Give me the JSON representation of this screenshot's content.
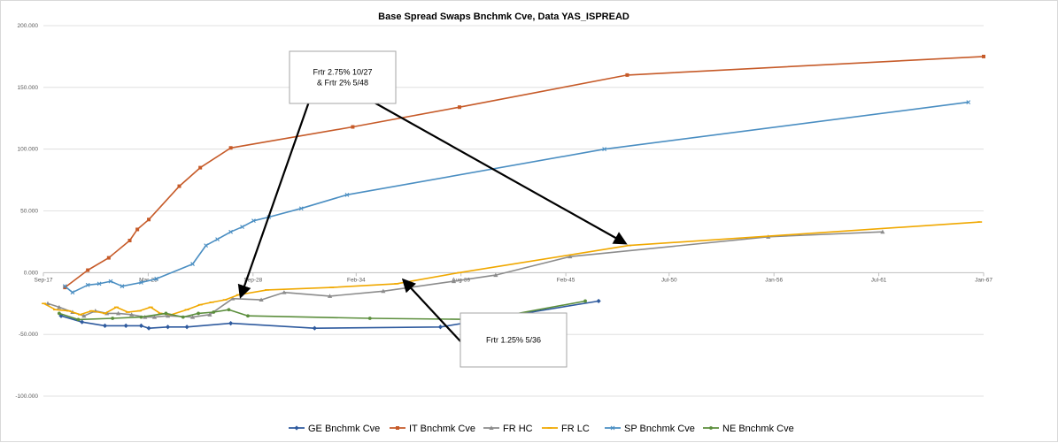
{
  "chart_data": {
    "type": "line",
    "title": "Base Spread Swaps Bnchmk Cve, Data YAS_ISPREAD",
    "xlabel": "",
    "ylabel": "",
    "ylim": [
      -100,
      200
    ],
    "yticks": [
      -100,
      -50,
      0,
      50,
      100,
      150,
      200
    ],
    "ytick_labels": [
      "-100.000",
      "-50.000",
      "0.000",
      "50.000",
      "100.000",
      "150.000",
      "200.000"
    ],
    "xticks": [
      2017.67,
      2023.17,
      2028.67,
      2034.08,
      2039.58,
      2045.08,
      2050.5,
      2056.0,
      2061.5,
      2067.0
    ],
    "xtick_labels": [
      "Sep-17",
      "Mar-23",
      "Sep-28",
      "Feb-34",
      "Aug-39",
      "Feb-45",
      "Jul-50",
      "Jan-56",
      "Jul-61",
      "Jan-67"
    ],
    "xlim": [
      2017.67,
      2067.0
    ],
    "grid": "horizontal",
    "legend_position": "bottom",
    "series": [
      {
        "name": "GE Bnchmk Cve",
        "color": "#2e5a9e",
        "marker": "diamond",
        "x": [
          2018.6,
          2019.7,
          2020.9,
          2022.0,
          2022.8,
          2023.2,
          2024.2,
          2025.2,
          2027.5,
          2031.9,
          2038.5,
          2046.8
        ],
        "y": [
          -35,
          -40,
          -43,
          -43,
          -43,
          -45,
          -44,
          -44,
          -41,
          -45,
          -44,
          -23
        ]
      },
      {
        "name": "IT Bnchmk Cve",
        "color": "#c65a28",
        "marker": "square",
        "x": [
          2018.8,
          2020.0,
          2021.1,
          2022.2,
          2022.6,
          2023.2,
          2024.8,
          2025.9,
          2027.5,
          2033.9,
          2039.5,
          2048.3,
          2067.0
        ],
        "y": [
          -12,
          2,
          12,
          26,
          35,
          43,
          70,
          85,
          101,
          118,
          134,
          160,
          175
        ]
      },
      {
        "name": "FR HC",
        "color": "#8c8c8c",
        "marker": "triangle",
        "x": [
          2017.9,
          2018.5,
          2019.2,
          2019.8,
          2020.4,
          2021.0,
          2021.6,
          2022.3,
          2023.0,
          2023.5,
          2024.2,
          2025.5,
          2026.4,
          2027.6,
          2029.1,
          2030.3,
          2032.7,
          2035.5,
          2039.2,
          2041.4,
          2045.3,
          2055.7,
          2061.7
        ],
        "y": [
          -25,
          -28,
          -32,
          -35,
          -31,
          -33,
          -33,
          -34,
          -36,
          -36,
          -35,
          -36,
          -34,
          -21,
          -22,
          -16,
          -19,
          -15,
          -7,
          -2,
          13,
          29,
          33
        ]
      },
      {
        "name": "FR LC",
        "color": "#f0a800",
        "marker": "dash",
        "x": [
          2017.7,
          2018.3,
          2019.0,
          2019.6,
          2020.2,
          2020.9,
          2021.5,
          2022.1,
          2022.7,
          2023.3,
          2023.8,
          2024.4,
          2025.2,
          2025.9,
          2026.5,
          2027.2,
          2027.9,
          2029.4,
          2032.8,
          2036.2,
          2039.5,
          2048.4,
          2066.8
        ],
        "y": [
          -25,
          -30,
          -31,
          -34,
          -31,
          -33,
          -28,
          -32,
          -31,
          -28,
          -33,
          -34,
          -30,
          -26,
          -24,
          -22,
          -18,
          -14,
          -12,
          -9,
          0,
          22,
          41
        ]
      },
      {
        "name": "SP Bnchmk Cve",
        "color": "#4a8ec2",
        "marker": "x",
        "x": [
          2018.8,
          2019.2,
          2020.0,
          2020.6,
          2021.2,
          2021.8,
          2022.8,
          2023.6,
          2025.5,
          2026.2,
          2026.8,
          2027.5,
          2028.1,
          2028.7,
          2029.5,
          2031.2,
          2033.6,
          2047.1,
          2066.2
        ],
        "y": [
          -11,
          -16,
          -10,
          -9,
          -7,
          -11,
          -8,
          -5,
          7,
          22,
          27,
          33,
          37,
          42,
          45,
          52,
          63,
          100,
          138
        ]
      },
      {
        "name": "NE Bnchmk Cve",
        "color": "#5b8e3c",
        "marker": "circle",
        "x": [
          2018.5,
          2019.5,
          2021.3,
          2022.8,
          2024.1,
          2025.0,
          2025.8,
          2026.6,
          2027.4,
          2028.4,
          2034.8,
          2040.8,
          2046.1
        ],
        "y": [
          -33,
          -38,
          -37,
          -36,
          -33,
          -36,
          -33,
          -32,
          -30,
          -35,
          -37,
          -38,
          -23
        ]
      }
    ],
    "annotations": [
      {
        "lines": [
          "Frtr 2.75% 10/27",
          "& Frtr 2% 5/48"
        ]
      },
      {
        "lines": [
          "Frtr 1.25% 5/36"
        ]
      }
    ]
  }
}
